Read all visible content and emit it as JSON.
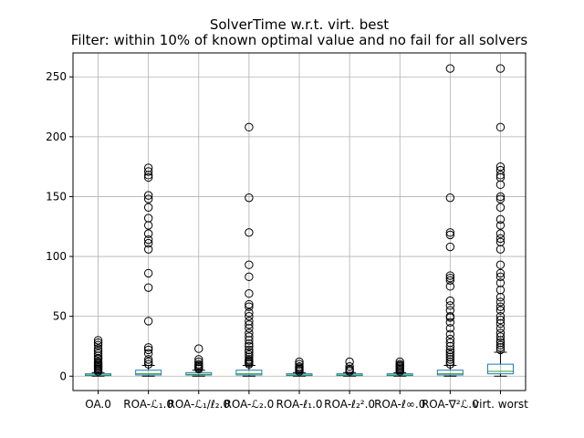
{
  "chart_data": {
    "type": "boxplot",
    "title": "SolverTime w.r.t. virt. best",
    "subtitle": "Filter: within 10% of known optimal value and no fail for all solvers",
    "xlabel": "",
    "ylabel": "",
    "ylim": [
      -12,
      270
    ],
    "yticks": [
      0,
      50,
      100,
      150,
      200,
      250
    ],
    "grid": true,
    "categories": [
      "OA.0",
      "ROA-ℒ₁.0",
      "ROA-ℒ₁/ℓ₂.0",
      "ROA-ℒ₂.0",
      "ROA-ℓ₁.0",
      "ROA-ℓ₂².0",
      "ROA-ℓ∞.0",
      "ROA-∇²ℒ.0",
      "virt. worst"
    ],
    "boxes": [
      {
        "q1": 0.5,
        "median": 1,
        "q3": 2,
        "whisker_low": 0,
        "whisker_high": 3,
        "fliers": [
          4,
          5,
          6,
          7,
          8,
          9,
          10,
          11,
          12,
          14,
          15,
          17,
          19,
          21,
          23,
          26,
          28,
          30
        ]
      },
      {
        "q1": 1,
        "median": 2,
        "q3": 5,
        "whisker_low": 0,
        "whisker_high": 9,
        "fliers": [
          10,
          12,
          14,
          19,
          22,
          24,
          46,
          74,
          86,
          106,
          111,
          114,
          119,
          126,
          132,
          141,
          148,
          151,
          166,
          168,
          171,
          174
        ]
      },
      {
        "q1": 1,
        "median": 1.5,
        "q3": 3,
        "whisker_low": 0,
        "whisker_high": 5,
        "fliers": [
          6,
          7,
          8,
          9,
          10,
          12,
          14,
          23
        ]
      },
      {
        "q1": 1,
        "median": 2,
        "q3": 5,
        "whisker_low": 0,
        "whisker_high": 9,
        "fliers": [
          10,
          11,
          12,
          13,
          14,
          16,
          18,
          20,
          22,
          25,
          27,
          30,
          33,
          36,
          40,
          43,
          46,
          50,
          53,
          58,
          60,
          69,
          83,
          93,
          120,
          149,
          208
        ]
      },
      {
        "q1": 0.5,
        "median": 1,
        "q3": 2,
        "whisker_low": 0,
        "whisker_high": 3,
        "fliers": [
          4,
          5,
          6,
          7,
          8,
          10,
          12
        ]
      },
      {
        "q1": 0.5,
        "median": 1,
        "q3": 2,
        "whisker_low": 0,
        "whisker_high": 3,
        "fliers": [
          4,
          5,
          6,
          8,
          12
        ]
      },
      {
        "q1": 0.5,
        "median": 1,
        "q3": 2,
        "whisker_low": 0,
        "whisker_high": 3,
        "fliers": [
          4,
          5,
          6,
          7,
          8,
          9,
          10,
          12
        ]
      },
      {
        "q1": 1,
        "median": 2,
        "q3": 5,
        "whisker_low": 0,
        "whisker_high": 9,
        "fliers": [
          10,
          12,
          14,
          16,
          18,
          20,
          22,
          25,
          28,
          31,
          35,
          40,
          45,
          49,
          50,
          55,
          59,
          63,
          75,
          80,
          82,
          84,
          108,
          118,
          120,
          149,
          257
        ]
      },
      {
        "q1": 2,
        "median": 4,
        "q3": 10,
        "whisker_low": 0,
        "whisker_high": 20,
        "fliers": [
          22,
          24,
          26,
          28,
          30,
          33,
          36,
          40,
          44,
          47,
          50,
          55,
          58,
          62,
          66,
          72,
          78,
          83,
          86,
          93,
          106,
          112,
          115,
          119,
          126,
          131,
          141,
          148,
          150,
          160,
          166,
          168,
          172,
          175,
          208,
          257
        ]
      }
    ]
  }
}
